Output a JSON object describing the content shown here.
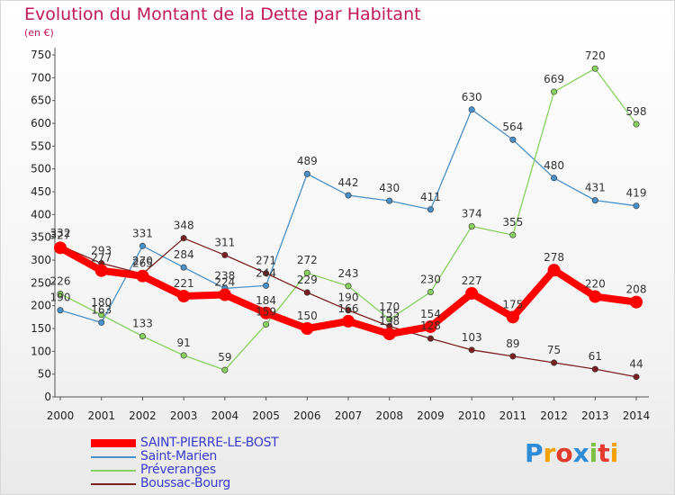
{
  "title": "Evolution du Montant de la Dette par Habitant",
  "unit_label": "(en €)",
  "logo_text": "Proxiti",
  "chart_data": {
    "type": "line",
    "title": "Evolution du Montant de la Dette par Habitant",
    "subtitle": "(en €)",
    "xlabel": "",
    "ylabel": "",
    "x": [
      "2000",
      "2001",
      "2002",
      "2003",
      "2004",
      "2005",
      "2006",
      "2007",
      "2008",
      "2009",
      "2010",
      "2011",
      "2012",
      "2013",
      "2014"
    ],
    "ylim": [
      0,
      750
    ],
    "yticks": [
      0,
      50,
      100,
      150,
      200,
      250,
      300,
      350,
      400,
      450,
      500,
      550,
      600,
      650,
      700,
      750
    ],
    "grid": false,
    "legend_position": "bottom-left",
    "series": [
      {
        "name": "SAINT-PIERRE-LE-BOST",
        "color": "#ff0000",
        "values": [
          327,
          277,
          265,
          221,
          224,
          184,
          150,
          166,
          138,
          154,
          227,
          175,
          278,
          220,
          208
        ],
        "labels": [
          "327",
          "277",
          "265",
          "221",
          "224",
          "184",
          "150",
          "166",
          "138",
          "154",
          "227",
          "175",
          "278",
          "220",
          "208"
        ]
      },
      {
        "name": "Saint-Marien",
        "color": "#4a90c8",
        "values": [
          190,
          163,
          331,
          284,
          238,
          244,
          489,
          442,
          430,
          411,
          630,
          564,
          480,
          431,
          419
        ],
        "labels": [
          "190",
          "163",
          "331",
          "284",
          "238",
          "244",
          "489",
          "442",
          "430",
          "411",
          "630",
          "564",
          "480",
          "431",
          "419"
        ]
      },
      {
        "name": "Préveranges",
        "color": "#88d060",
        "values": [
          226,
          180,
          133,
          91,
          59,
          159,
          272,
          243,
          170,
          230,
          374,
          355,
          669,
          720,
          598
        ],
        "labels": [
          "226",
          "180",
          "133",
          "91",
          "59",
          "159",
          "272",
          "243",
          "170",
          "230",
          "374",
          "355",
          "669",
          "720",
          "598"
        ]
      },
      {
        "name": "Boussac-Bourg",
        "color": "#7a2020",
        "values": [
          332,
          293,
          270,
          348,
          311,
          271,
          229,
          190,
          155,
          128,
          103,
          89,
          75,
          61,
          44
        ],
        "labels": [
          "332",
          "293",
          "270",
          "348",
          "311",
          "271",
          "229",
          "190",
          "155",
          "128",
          "103",
          "89",
          "75",
          "61",
          "44"
        ]
      }
    ]
  }
}
